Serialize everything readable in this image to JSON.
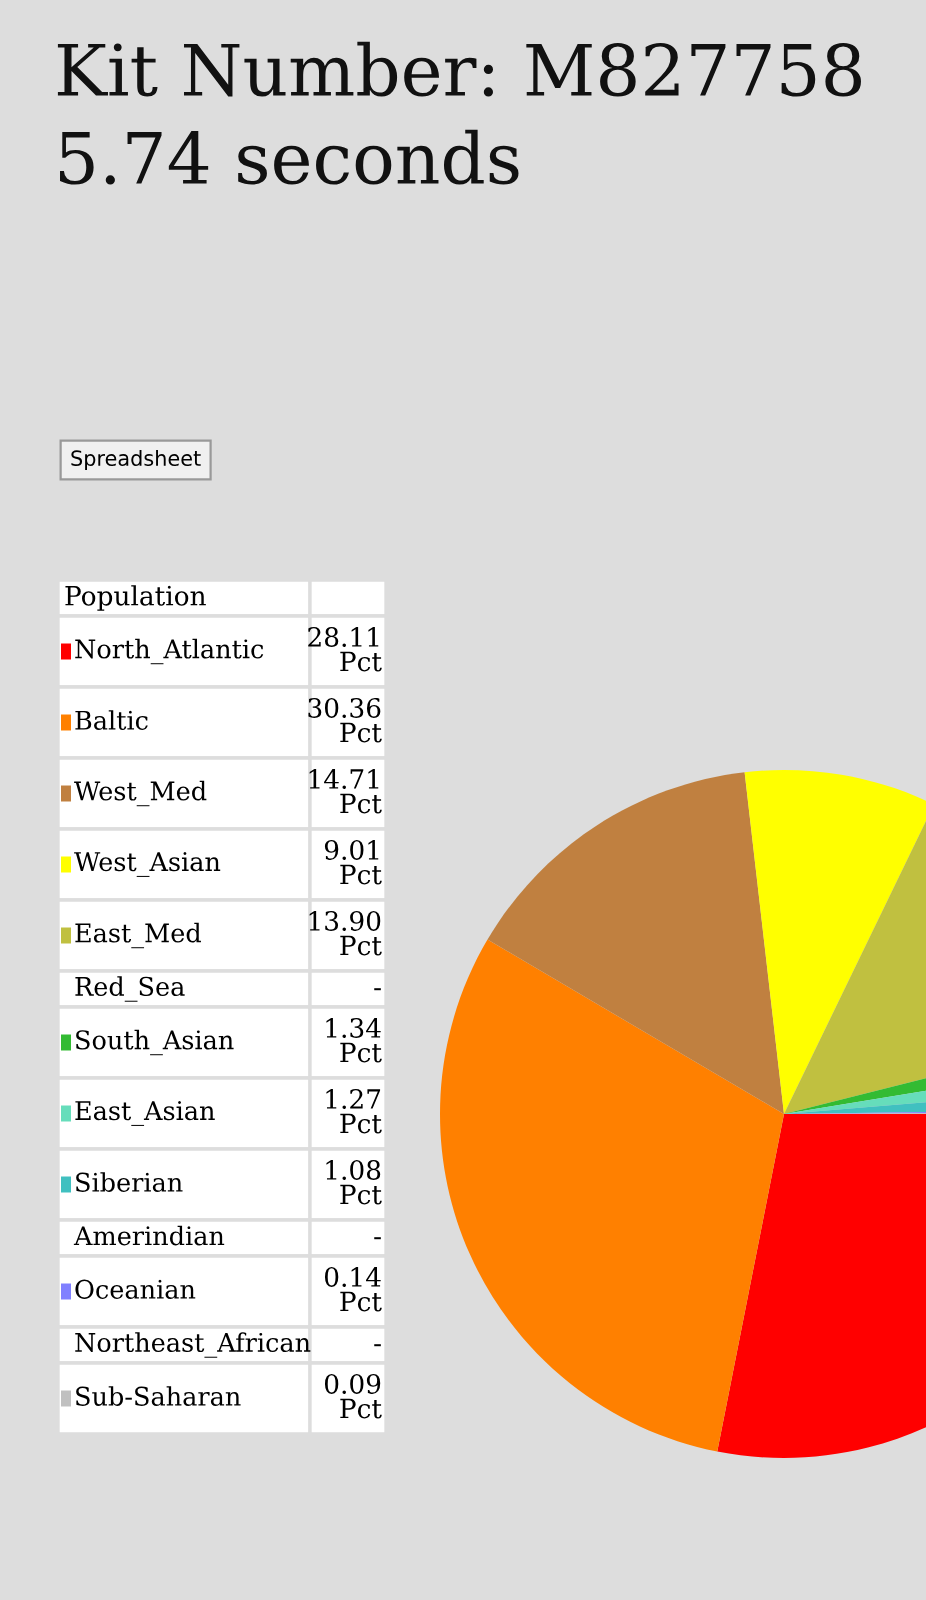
{
  "chart_data": {
    "type": "pie",
    "title": "Kit Number: M827758",
    "subtitle": "5.74 seconds",
    "legend_title": "Population",
    "categories": [
      "North_Atlantic",
      "Baltic",
      "West_Med",
      "West_Asian",
      "East_Med",
      "Red_Sea",
      "South_Asian",
      "East_Asian",
      "Siberian",
      "Amerindian",
      "Oceanian",
      "Northeast_African",
      "Sub-Saharan"
    ],
    "values": [
      28.11,
      30.36,
      14.71,
      9.01,
      13.9,
      null,
      1.34,
      1.27,
      1.08,
      null,
      0.14,
      null,
      0.09
    ],
    "value_labels": [
      "28.11 Pct",
      "30.36 Pct",
      "14.71 Pct",
      "9.01 Pct",
      "13.90 Pct",
      "-",
      "1.34 Pct",
      "1.27 Pct",
      "1.08 Pct",
      "-",
      "0.14 Pct",
      "-",
      "0.09 Pct"
    ],
    "colors": [
      "#ff0000",
      "#ff8000",
      "#c08040",
      "#ffff00",
      "#c0c040",
      null,
      "#33bb33",
      "#66ddbb",
      "#40c0c0",
      null,
      "#8080ff",
      null,
      "#c0c0c0"
    ],
    "annotations": [
      "Spreadsheet"
    ],
    "legend": "left"
  }
}
